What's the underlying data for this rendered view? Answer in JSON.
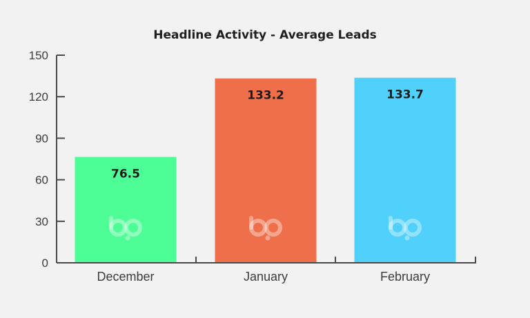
{
  "chart_data": {
    "type": "bar",
    "title": "Headline Activity - Average Leads",
    "xlabel": "",
    "ylabel": "",
    "categories": [
      "December",
      "January",
      "February"
    ],
    "values": [
      76.5,
      133.2,
      133.7
    ],
    "data_labels": [
      "76.5",
      "133.2",
      "133.7"
    ],
    "colors": [
      "#4dfd95",
      "#ee6f49",
      "#4fd1fb"
    ],
    "ylim": [
      0,
      150
    ],
    "yticks": [
      0,
      30,
      60,
      90,
      120,
      150
    ],
    "ytick_labels": [
      "0",
      "30",
      "60",
      "90",
      "120",
      "150"
    ],
    "grid": false,
    "legend": "none",
    "watermark_icon": "bp-logo-icon"
  }
}
